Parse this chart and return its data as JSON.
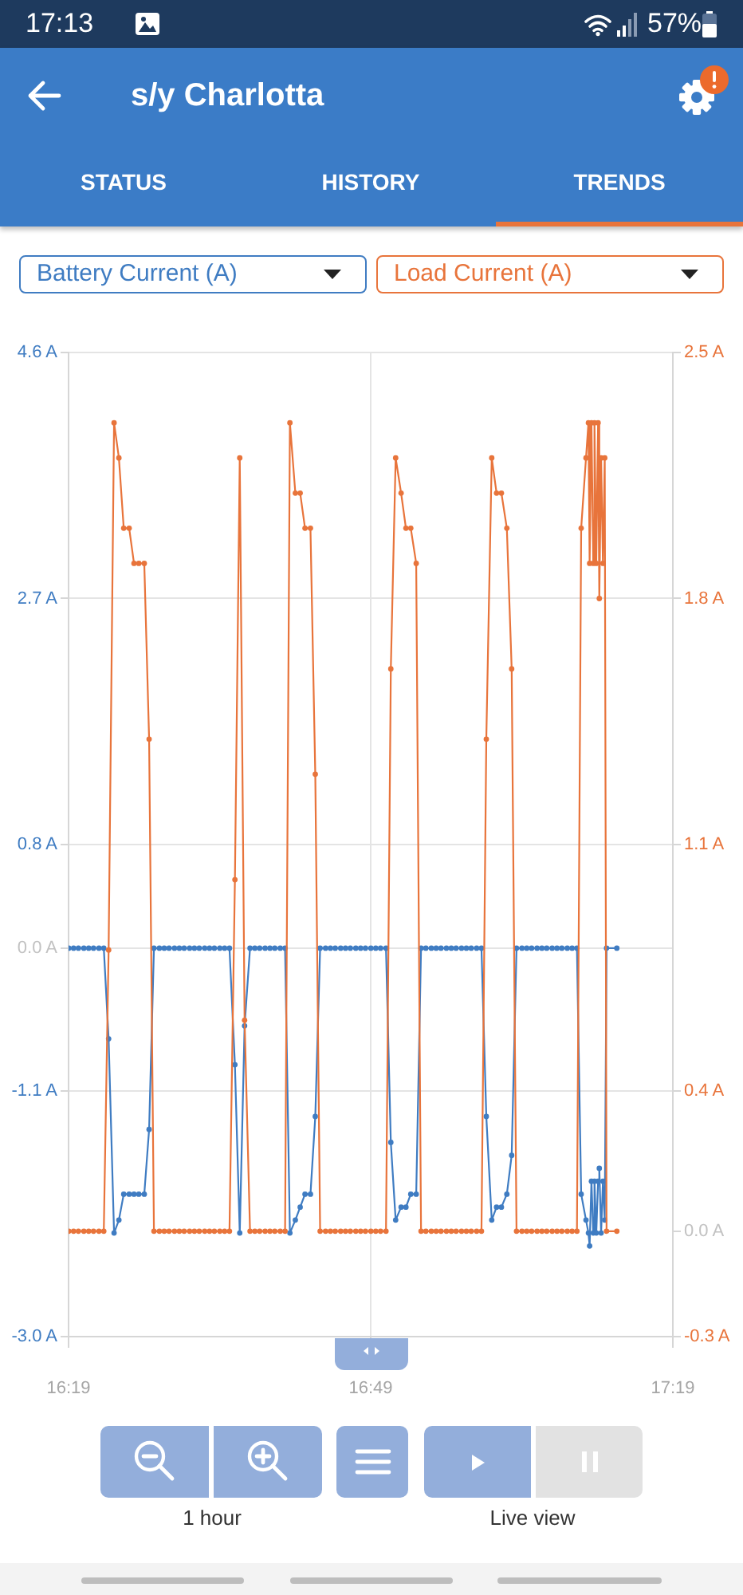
{
  "chart_data": {
    "type": "line",
    "title": "s/y Charlotta",
    "annotations": [
      "17:13",
      "57%",
      "STATUS",
      "HISTORY",
      "TRENDS",
      "1 hour",
      "Live view"
    ],
    "x": [
      16.317,
      16.325,
      16.333,
      16.342,
      16.35,
      16.358,
      16.367,
      16.375,
      16.383,
      16.392,
      16.4,
      16.408,
      16.417,
      16.425,
      16.433,
      16.442,
      16.45,
      16.458,
      16.467,
      16.475,
      16.483,
      16.492,
      16.5,
      16.508,
      16.517,
      16.525,
      16.533,
      16.542,
      16.55,
      16.558,
      16.567,
      16.575,
      16.583,
      16.592,
      16.6,
      16.608,
      16.617,
      16.625,
      16.633,
      16.642,
      16.65,
      16.658,
      16.667,
      16.675,
      16.683,
      16.692,
      16.7,
      16.708,
      16.717,
      16.725,
      16.733,
      16.742,
      16.75,
      16.758,
      16.767,
      16.775,
      16.783,
      16.792,
      16.8,
      16.808,
      16.817,
      16.825,
      16.833,
      16.842,
      16.85,
      16.858,
      16.867,
      16.875,
      16.883,
      16.892,
      16.9,
      16.908,
      16.917,
      16.925,
      16.933,
      16.942,
      16.95,
      16.958,
      16.967,
      16.975,
      16.983,
      16.992,
      17.0,
      17.008,
      17.017,
      17.025,
      17.033,
      17.042,
      17.05,
      17.058,
      17.067,
      17.075,
      17.083,
      17.092,
      17.1,
      17.108,
      17.117,
      17.125,
      17.133,
      17.142,
      17.15,
      17.158,
      17.165,
      17.173,
      17.177,
      17.179,
      17.182,
      17.185,
      17.187,
      17.19,
      17.193,
      17.195,
      17.198,
      17.201,
      17.204,
      17.207,
      17.224
    ],
    "series": [
      {
        "name": "Battery Current (A)",
        "color": "#3f7cc2",
        "values": [
          0,
          0,
          0,
          0,
          0,
          0,
          0,
          0,
          -0.7,
          -2.2,
          -2.1,
          -1.9,
          -1.9,
          -1.9,
          -1.9,
          -1.9,
          -1.4,
          0,
          0,
          0,
          0,
          0,
          0,
          0,
          0,
          0,
          0,
          0,
          0,
          0,
          0,
          0,
          0,
          -0.9,
          -2.2,
          -0.6,
          0,
          0,
          0,
          0,
          0,
          0,
          0,
          0,
          -2.2,
          -2.1,
          -2.0,
          -1.9,
          -1.9,
          -1.3,
          0,
          0,
          0,
          0,
          0,
          0,
          0,
          0,
          0,
          0,
          0,
          0,
          0,
          0,
          -1.5,
          -2.1,
          -2.0,
          -2.0,
          -1.9,
          -1.9,
          0,
          0,
          0,
          0,
          0,
          0,
          0,
          0,
          0,
          0,
          0,
          0,
          0,
          -1.3,
          -2.1,
          -2.0,
          -2.0,
          -1.9,
          -1.6,
          0,
          0,
          0,
          0,
          0,
          0,
          0,
          0,
          0,
          0,
          0,
          0,
          0,
          -1.9,
          -2.1,
          -2.2,
          -2.3,
          -1.8,
          -2.2,
          -1.8,
          -2.2,
          -1.8,
          -1.7,
          -2.2,
          -1.8,
          -2.1,
          0,
          0
        ]
      },
      {
        "name": "Load Current (A)",
        "color": "#e8743b",
        "axis": "y2",
        "values": [
          0,
          0,
          0,
          0,
          0,
          0,
          0,
          0,
          0.8,
          2.3,
          2.2,
          2.0,
          2.0,
          1.9,
          1.9,
          1.9,
          1.4,
          0,
          0,
          0,
          0,
          0,
          0,
          0,
          0,
          0,
          0,
          0,
          0,
          0,
          0,
          0,
          0,
          1.0,
          2.2,
          0.6,
          0,
          0,
          0,
          0,
          0,
          0,
          0,
          0,
          2.3,
          2.1,
          2.1,
          2.0,
          2.0,
          1.3,
          0,
          0,
          0,
          0,
          0,
          0,
          0,
          0,
          0,
          0,
          0,
          0,
          0,
          0,
          1.6,
          2.2,
          2.1,
          2.0,
          2.0,
          1.9,
          0,
          0,
          0,
          0,
          0,
          0,
          0,
          0,
          0,
          0,
          0,
          0,
          0,
          1.4,
          2.2,
          2.1,
          2.1,
          2.0,
          1.6,
          0,
          0,
          0,
          0,
          0,
          0,
          0,
          0,
          0,
          0,
          0,
          0,
          0,
          2.0,
          2.2,
          2.3,
          1.9,
          2.3,
          1.9,
          2.3,
          1.9,
          2.3,
          1.8,
          2.2,
          1.9,
          2.2,
          0,
          0
        ]
      }
    ],
    "xlim": [
      16.3167,
      17.3167
    ],
    "xticks": [
      {
        "value": 16.3167,
        "label": "16:19"
      },
      {
        "value": 16.8167,
        "label": "16:49"
      },
      {
        "value": 17.3167,
        "label": "17:19"
      }
    ],
    "ylim": [
      -3.0,
      4.6
    ],
    "yticks": [
      {
        "value": 4.6,
        "label": "4.6 A"
      },
      {
        "value": 2.7,
        "label": "2.7 A"
      },
      {
        "value": 0.8,
        "label": "0.8 A"
      },
      {
        "value": 0,
        "label": "0.0 A"
      },
      {
        "value": -1.1,
        "label": "-1.1 A"
      },
      {
        "value": -3.0,
        "label": "-3.0 A"
      }
    ],
    "y2lim": [
      -0.3,
      2.5
    ],
    "y2ticks": [
      {
        "value": 2.5,
        "label": "2.5 A"
      },
      {
        "value": 1.8,
        "label": "1.8 A"
      },
      {
        "value": 1.1,
        "label": "1.1 A"
      },
      {
        "value": 0.4,
        "label": "0.4 A"
      },
      {
        "value": 0,
        "label": "0.0 A"
      },
      {
        "value": -0.3,
        "label": "-0.3 A"
      }
    ],
    "grid": true,
    "legend": "top",
    "marker": "circle"
  }
}
